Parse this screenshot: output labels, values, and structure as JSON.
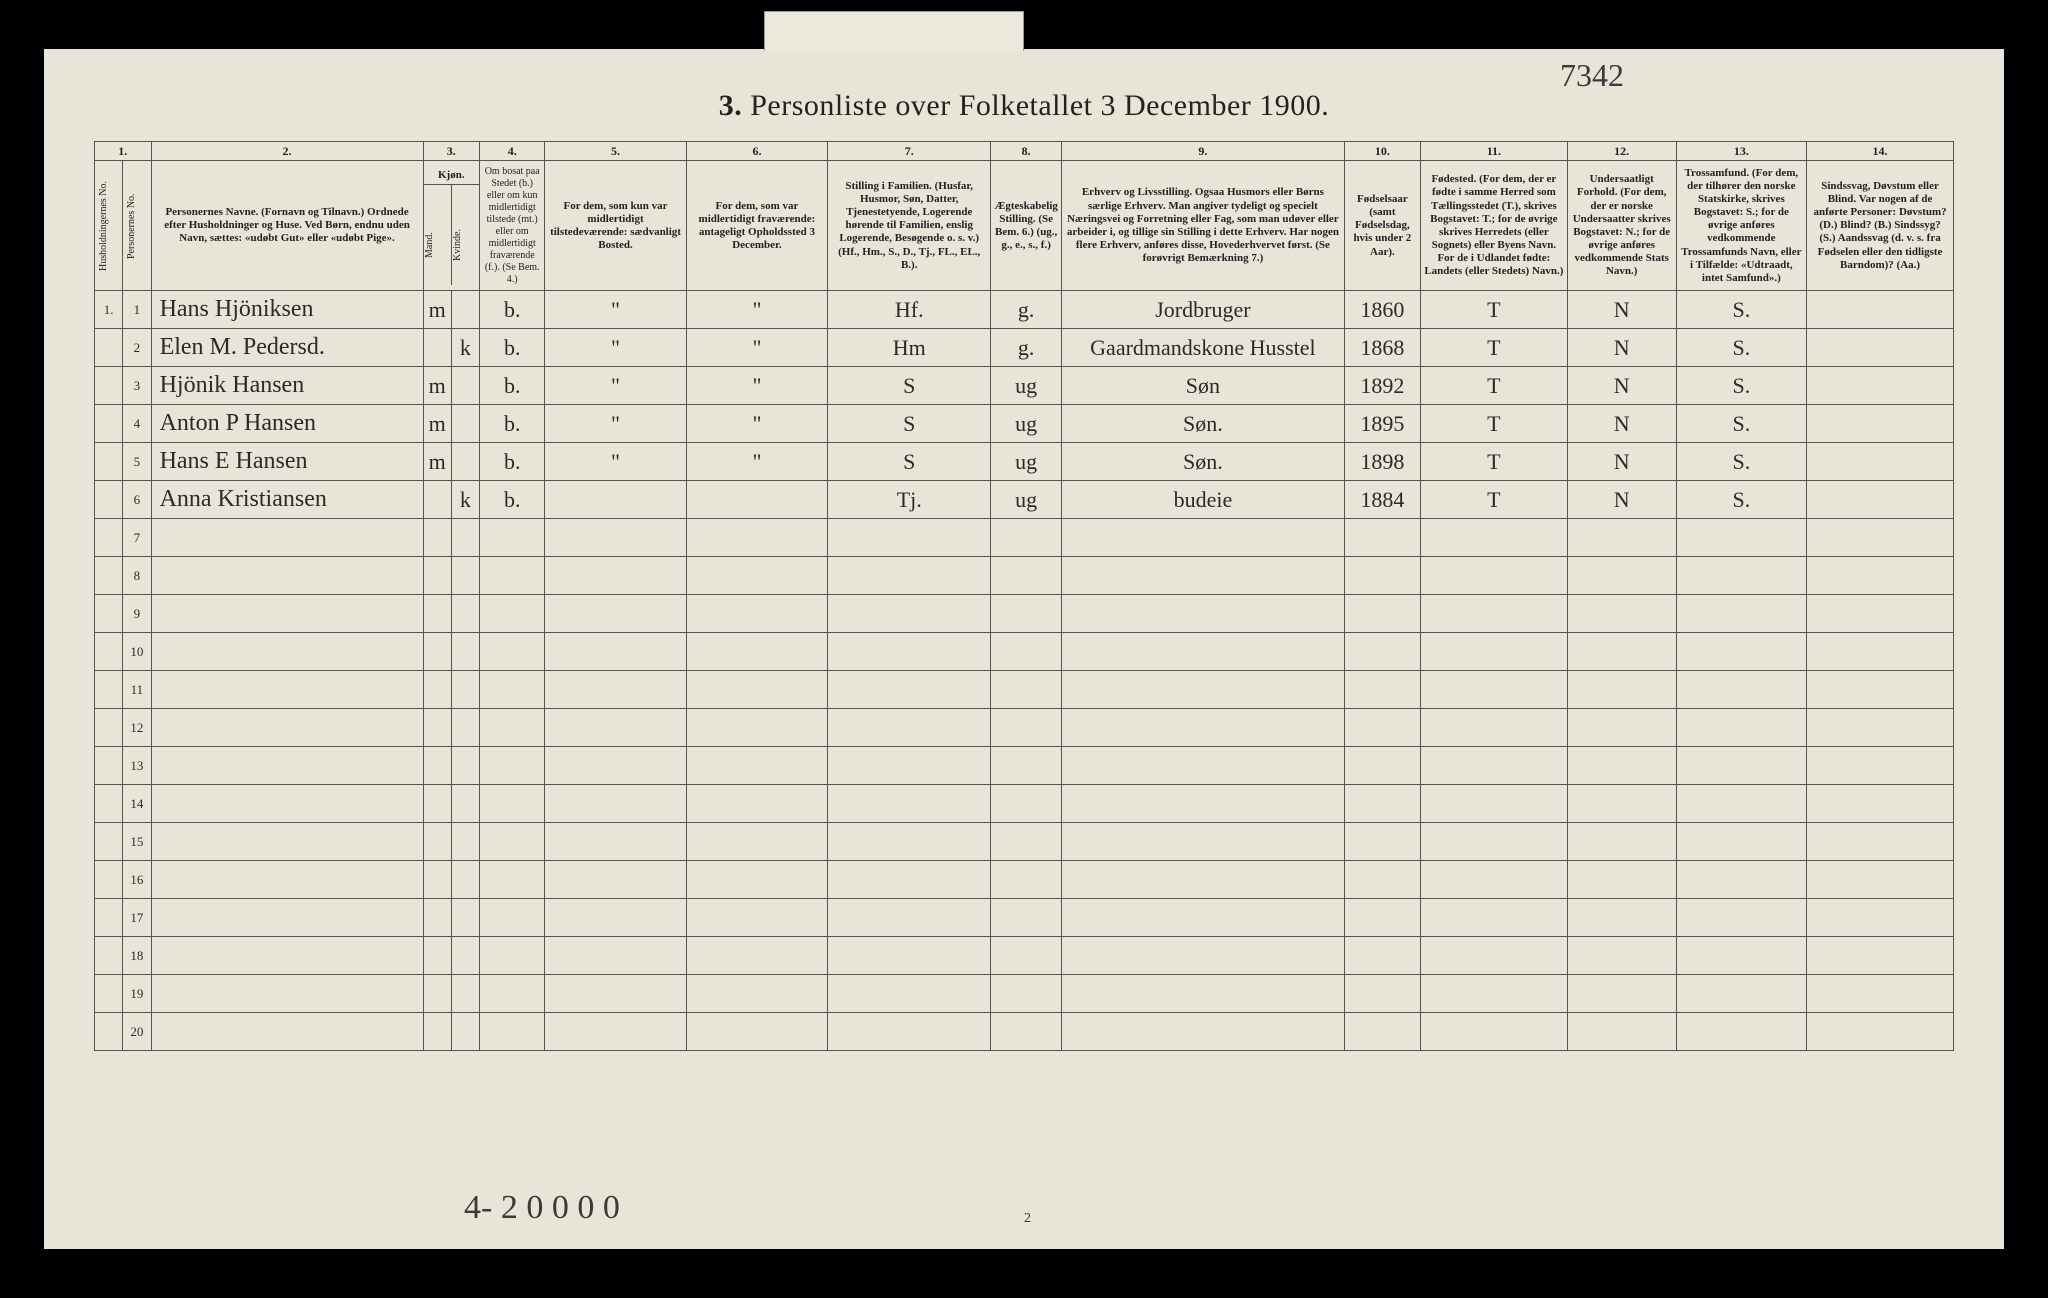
{
  "top_handwritten": "7342",
  "title_num": "3.",
  "title": "Personliste over Folketallet 3 December 1900.",
  "col_numbers": [
    "1.",
    "2.",
    "3.",
    "4.",
    "5.",
    "6.",
    "7.",
    "8.",
    "9.",
    "10.",
    "11.",
    "12.",
    "13.",
    "14."
  ],
  "headers": {
    "c1a": "Husholdningernes No.",
    "c1b": "Personernes No.",
    "c2": "Personernes Navne.\n(Fornavn og Tilnavn.)\nOrdnede efter Husholdninger og Huse.\nVed Børn, endnu uden Navn, sættes: «udøbt Gut» eller «udøbt Pige».",
    "c3": "Kjøn.",
    "c3a": "Mand.",
    "c3b": "Kvinde.",
    "c4": "Om bosat paa Stedet (b.) eller om kun midlertidigt tilstede (mt.) eller om midlertidigt fraværende (f.). (Se Bem. 4.)",
    "c5": "For dem, som kun var midlertidigt tilstedeværende: sædvanligt Bosted.",
    "c6": "For dem, som var midlertidigt fraværende: antageligt Opholdssted 3 December.",
    "c7": "Stilling i Familien. (Husfar, Husmor, Søn, Datter, Tjenestetyende, Logerende hørende til Familien, enslig Logerende, Besøgende o. s. v.) (Hf., Hm., S., D., Tj., FL., EL., B.).",
    "c8": "Ægteskabelig Stilling. (Se Bem. 6.) (ug., g., e., s., f.)",
    "c9": "Erhverv og Livsstilling. Ogsaa Husmors eller Børns særlige Erhverv. Man angiver tydeligt og specielt Næringsvei og Forretning eller Fag, som man udøver eller arbeider i, og tillige sin Stilling i dette Erhverv. Har nogen flere Erhverv, anføres disse, Hovederhvervet først. (Se forøvrigt Bemærkning 7.)",
    "c10": "Fødselsaar (samt Fødselsdag, hvis under 2 Aar).",
    "c11": "Fødested. (For dem, der er fødte i samme Herred som Tællingsstedet (T.), skrives Bogstavet: T.; for de øvrige skrives Herredets (eller Sognets) eller Byens Navn. For de i Udlandet fødte: Landets (eller Stedets) Navn.)",
    "c12": "Undersaatligt Forhold. (For dem, der er norske Undersaatter skrives Bogstavet: N.; for de øvrige anføres vedkommende Stats Navn.)",
    "c13": "Trossamfund. (For dem, der tilhører den norske Statskirke, skrives Bogstavet: S.; for de øvrige anføres vedkommende Trossamfunds Navn, eller i Tilfælde: «Udtraadt, intet Samfund».)",
    "c14": "Sindssvag, Døvstum eller Blind. Var nogen af de anførte Personer: Døvstum? (D.) Blind? (B.) Sindssyg? (S.) Aandssvag (d. v. s. fra Fødselen eller den tidligste Barndom)? (Aa.)"
  },
  "rows": [
    {
      "hh": "1.",
      "no": "1",
      "name": "Hans Hjöniksen",
      "m": "m",
      "k": "",
      "b": "b.",
      "c5": "\"",
      "c6": "\"",
      "fam": "Hf.",
      "aeg": "g.",
      "erh": "Jordbruger",
      "aar": "1860",
      "fs": "T",
      "us": "N",
      "tr": "S.",
      "c14": ""
    },
    {
      "hh": "",
      "no": "2",
      "name": "Elen M. Pedersd.",
      "m": "",
      "k": "k",
      "b": "b.",
      "c5": "\"",
      "c6": "\"",
      "fam": "Hm",
      "aeg": "g.",
      "erh": "Gaardmandskone Husstel",
      "aar": "1868",
      "fs": "T",
      "us": "N",
      "tr": "S.",
      "c14": ""
    },
    {
      "hh": "",
      "no": "3",
      "name": "Hjönik Hansen",
      "m": "m",
      "k": "",
      "b": "b.",
      "c5": "\"",
      "c6": "\"",
      "fam": "S",
      "aeg": "ug",
      "erh": "Søn",
      "aar": "1892",
      "fs": "T",
      "us": "N",
      "tr": "S.",
      "c14": ""
    },
    {
      "hh": "",
      "no": "4",
      "name": "Anton P Hansen",
      "m": "m",
      "k": "",
      "b": "b.",
      "c5": "\"",
      "c6": "\"",
      "fam": "S",
      "aeg": "ug",
      "erh": "Søn.",
      "aar": "1895",
      "fs": "T",
      "us": "N",
      "tr": "S.",
      "c14": ""
    },
    {
      "hh": "",
      "no": "5",
      "name": "Hans E Hansen",
      "m": "m",
      "k": "",
      "b": "b.",
      "c5": "\"",
      "c6": "\"",
      "fam": "S",
      "aeg": "ug",
      "erh": "Søn.",
      "aar": "1898",
      "fs": "T",
      "us": "N",
      "tr": "S.",
      "c14": ""
    },
    {
      "hh": "",
      "no": "6",
      "name": "Anna Kristiansen",
      "m": "",
      "k": "k",
      "b": "b.",
      "c5": "",
      "c6": "",
      "fam": "Tj.",
      "aeg": "ug",
      "erh": "budeie",
      "aar": "1884",
      "fs": "T",
      "us": "N",
      "tr": "S.",
      "c14": ""
    }
  ],
  "blank_rows": [
    "7",
    "8",
    "9",
    "10",
    "11",
    "12",
    "13",
    "14",
    "15",
    "16",
    "17",
    "18",
    "19",
    "20"
  ],
  "bottom_handwritten": "4- 2 0 0  0 0",
  "bottom_page": "2"
}
